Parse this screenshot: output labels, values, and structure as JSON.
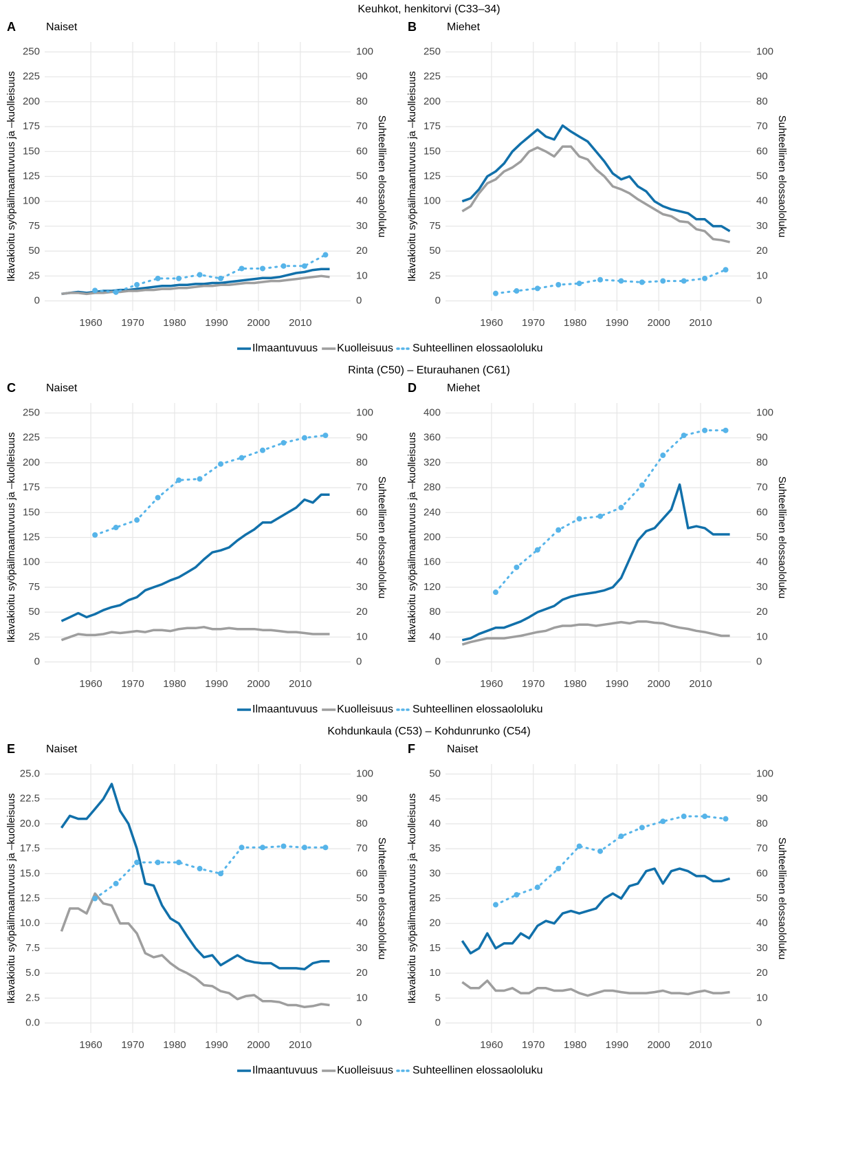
{
  "section_titles": [
    "Keuhkot, henkitorvi (C33–34)",
    "Rinta (C50) – Eturauhanen (C61)",
    "Kohdunkaula (C53) – Kohdunrunko (C54)"
  ],
  "chart_data": [
    {
      "type": "line",
      "label": "A",
      "title": "Naiset",
      "ylabel": "Ikävakioitu syöpäilmaantuvuus ja –kuolleisuus",
      "y2label": "Suhteellinen elossaololuku",
      "x": [
        1953,
        1955,
        1957,
        1959,
        1961,
        1963,
        1965,
        1967,
        1969,
        1971,
        1973,
        1975,
        1977,
        1979,
        1981,
        1983,
        1985,
        1987,
        1989,
        1991,
        1993,
        1995,
        1997,
        1999,
        2001,
        2003,
        2005,
        2007,
        2009,
        2011,
        2013,
        2015,
        2017
      ],
      "xlim": [
        1949,
        2022
      ],
      "xticks": [
        1960,
        1970,
        1980,
        1990,
        2000,
        2010
      ],
      "ylim": [
        -10,
        260
      ],
      "yticks": [
        0,
        25,
        50,
        75,
        100,
        125,
        150,
        175,
        200,
        225,
        250
      ],
      "y2lim": [
        -4,
        104
      ],
      "y2ticks": [
        0,
        10,
        20,
        30,
        40,
        50,
        60,
        70,
        80,
        90,
        100
      ],
      "series": [
        {
          "name": "Ilmaantuvuus",
          "color": "#1170aa",
          "values": [
            7,
            8,
            9,
            8,
            9,
            10,
            10,
            11,
            11,
            12,
            13,
            14,
            15,
            15,
            16,
            16,
            17,
            17,
            18,
            18,
            19,
            20,
            21,
            22,
            23,
            23,
            24,
            26,
            28,
            29,
            31,
            32,
            32
          ]
        },
        {
          "name": "Kuolleisuus",
          "color": "#9e9e9e",
          "values": [
            7,
            8,
            8,
            7,
            8,
            8,
            9,
            9,
            10,
            10,
            11,
            11,
            12,
            12,
            13,
            13,
            14,
            15,
            15,
            16,
            16,
            17,
            18,
            18,
            19,
            20,
            20,
            21,
            22,
            23,
            24,
            25,
            24
          ]
        },
        {
          "name": "Suhteellinen elossaololuku",
          "color": "#56b4e9",
          "axis": "y2",
          "x": [
            1961,
            1966,
            1971,
            1976,
            1981,
            1986,
            1991,
            1996,
            2001,
            2006,
            2011,
            2016
          ],
          "values": [
            4.2,
            3.5,
            6.5,
            9,
            9,
            10.5,
            9,
            13,
            13,
            14,
            14,
            18.5
          ]
        }
      ]
    },
    {
      "type": "line",
      "label": "B",
      "title": "Miehet",
      "ylabel": "Ikävakioitu syöpäilmaantuvuus ja –kuolleisuus",
      "y2label": "Suhteellinen elossaololuku",
      "x": [
        1953,
        1955,
        1957,
        1959,
        1961,
        1963,
        1965,
        1967,
        1969,
        1971,
        1973,
        1975,
        1977,
        1979,
        1981,
        1983,
        1985,
        1987,
        1989,
        1991,
        1993,
        1995,
        1997,
        1999,
        2001,
        2003,
        2005,
        2007,
        2009,
        2011,
        2013,
        2015,
        2017
      ],
      "xlim": [
        1949,
        2022
      ],
      "xticks": [
        1960,
        1970,
        1980,
        1990,
        2000,
        2010
      ],
      "ylim": [
        -10,
        260
      ],
      "yticks": [
        0,
        25,
        50,
        75,
        100,
        125,
        150,
        175,
        200,
        225,
        250
      ],
      "y2lim": [
        -4,
        104
      ],
      "y2ticks": [
        0,
        10,
        20,
        30,
        40,
        50,
        60,
        70,
        80,
        90,
        100
      ],
      "series": [
        {
          "color": "#1170aa",
          "values": [
            100,
            103,
            112,
            125,
            130,
            138,
            150,
            158,
            165,
            172,
            165,
            162,
            176,
            170,
            165,
            160,
            150,
            140,
            128,
            122,
            125,
            115,
            110,
            100,
            95,
            92,
            90,
            88,
            82,
            82,
            75,
            75,
            70
          ]
        },
        {
          "color": "#9e9e9e",
          "values": [
            90,
            95,
            108,
            118,
            122,
            130,
            134,
            140,
            150,
            154,
            150,
            145,
            155,
            155,
            145,
            142,
            132,
            125,
            115,
            112,
            108,
            102,
            97,
            92,
            87,
            85,
            80,
            79,
            72,
            70,
            62,
            61,
            59
          ]
        },
        {
          "color": "#56b4e9",
          "axis": "y2",
          "x": [
            1961,
            1966,
            1971,
            1976,
            1981,
            1986,
            1991,
            1996,
            2001,
            2006,
            2011,
            2016
          ],
          "values": [
            3,
            4,
            5,
            6.5,
            7,
            8.5,
            8,
            7.5,
            8,
            8,
            9,
            12.5
          ]
        }
      ]
    },
    {
      "type": "line",
      "label": "C",
      "title": "Naiset",
      "ylabel": "Ikävakioitu syöpäilmaantuvuus ja –kuolleisuus",
      "y2label": "Suhteellinen elossaololuku",
      "x": [
        1953,
        1955,
        1957,
        1959,
        1961,
        1963,
        1965,
        1967,
        1969,
        1971,
        1973,
        1975,
        1977,
        1979,
        1981,
        1983,
        1985,
        1987,
        1989,
        1991,
        1993,
        1995,
        1997,
        1999,
        2001,
        2003,
        2005,
        2007,
        2009,
        2011,
        2013,
        2015,
        2017
      ],
      "xlim": [
        1949,
        2022
      ],
      "xticks": [
        1960,
        1970,
        1980,
        1990,
        2000,
        2010
      ],
      "ylim": [
        -10,
        260
      ],
      "yticks": [
        0,
        25,
        50,
        75,
        100,
        125,
        150,
        175,
        200,
        225,
        250
      ],
      "y2lim": [
        -4,
        104
      ],
      "y2ticks": [
        0,
        10,
        20,
        30,
        40,
        50,
        60,
        70,
        80,
        90,
        100
      ],
      "series": [
        {
          "name": "Ilmaantuvuus",
          "color": "#1170aa",
          "values": [
            41,
            45,
            49,
            45,
            48,
            52,
            55,
            57,
            62,
            65,
            72,
            75,
            78,
            82,
            85,
            90,
            95,
            103,
            110,
            112,
            115,
            122,
            128,
            133,
            140,
            140,
            145,
            150,
            155,
            163,
            160,
            168,
            168
          ]
        },
        {
          "name": "Kuolleisuus",
          "color": "#9e9e9e",
          "values": [
            22,
            25,
            28,
            27,
            27,
            28,
            30,
            29,
            30,
            31,
            30,
            32,
            32,
            31,
            33,
            34,
            34,
            35,
            33,
            33,
            34,
            33,
            33,
            33,
            32,
            32,
            31,
            30,
            30,
            29,
            28,
            28,
            28
          ]
        },
        {
          "name": "Suhteellinen elossaololuku",
          "color": "#56b4e9",
          "axis": "y2",
          "x": [
            1961,
            1966,
            1971,
            1976,
            1981,
            1986,
            1991,
            1996,
            2001,
            2006,
            2011,
            2016
          ],
          "values": [
            51,
            54,
            57,
            66,
            73,
            73.5,
            79.5,
            82,
            85,
            88,
            90,
            91
          ]
        }
      ]
    },
    {
      "type": "line",
      "label": "D",
      "title": "Miehet",
      "ylabel": "Ikävakioitu syöpäilmaantuvuus ja –kuolleisuus",
      "y2label": "Suhteellinen elossaololuku",
      "x": [
        1953,
        1955,
        1957,
        1959,
        1961,
        1963,
        1965,
        1967,
        1969,
        1971,
        1973,
        1975,
        1977,
        1979,
        1981,
        1983,
        1985,
        1987,
        1989,
        1991,
        1993,
        1995,
        1997,
        1999,
        2001,
        2003,
        2005,
        2007,
        2009,
        2011,
        2013,
        2015,
        2017
      ],
      "xlim": [
        1949,
        2022
      ],
      "xticks": [
        1960,
        1970,
        1980,
        1990,
        2000,
        2010
      ],
      "ylim": [
        -16,
        416
      ],
      "yticks": [
        0,
        40,
        80,
        120,
        160,
        200,
        240,
        280,
        320,
        360,
        400
      ],
      "y2lim": [
        -4,
        104
      ],
      "y2ticks": [
        0,
        10,
        20,
        30,
        40,
        50,
        60,
        70,
        80,
        90,
        100
      ],
      "series": [
        {
          "color": "#1170aa",
          "values": [
            35,
            38,
            45,
            50,
            55,
            55,
            60,
            65,
            72,
            80,
            85,
            90,
            100,
            105,
            108,
            110,
            112,
            115,
            120,
            135,
            165,
            195,
            210,
            215,
            230,
            245,
            285,
            215,
            218,
            215,
            205,
            205,
            205
          ]
        },
        {
          "color": "#9e9e9e",
          "values": [
            28,
            32,
            35,
            38,
            38,
            38,
            40,
            42,
            45,
            48,
            50,
            55,
            58,
            58,
            60,
            60,
            58,
            60,
            62,
            64,
            62,
            65,
            65,
            63,
            62,
            58,
            55,
            53,
            50,
            48,
            45,
            42,
            42
          ]
        },
        {
          "color": "#56b4e9",
          "axis": "y2",
          "x": [
            1961,
            1966,
            1971,
            1976,
            1981,
            1986,
            1991,
            1996,
            2001,
            2006,
            2011,
            2016
          ],
          "values": [
            28,
            38,
            45,
            53,
            57.5,
            58.5,
            62,
            71,
            83,
            91,
            93,
            93
          ]
        }
      ]
    },
    {
      "type": "line",
      "label": "E",
      "title": "Naiset",
      "ylabel": "Ikävakioitu syöpäilmaantuvuus ja –kuolleisuus",
      "y2label": "Suhteellinen elossaololuku",
      "x": [
        1953,
        1955,
        1957,
        1959,
        1961,
        1963,
        1965,
        1967,
        1969,
        1971,
        1973,
        1975,
        1977,
        1979,
        1981,
        1983,
        1985,
        1987,
        1989,
        1991,
        1993,
        1995,
        1997,
        1999,
        2001,
        2003,
        2005,
        2007,
        2009,
        2011,
        2013,
        2015,
        2017
      ],
      "xlim": [
        1949,
        2022
      ],
      "xticks": [
        1960,
        1970,
        1980,
        1990,
        2000,
        2010
      ],
      "ylim": [
        -1,
        26
      ],
      "yticks": [
        {
          "value": 0,
          "label": "0.0"
        },
        2.5,
        {
          "value": 5,
          "label": "5.0"
        },
        7.5,
        {
          "value": 10,
          "label": "10.0"
        },
        12.5,
        {
          "value": 15,
          "label": "15.0"
        },
        17.5,
        {
          "value": 20,
          "label": "20.0"
        },
        22.5,
        {
          "value": 25,
          "label": "25.0"
        }
      ],
      "y2lim": [
        -4,
        104
      ],
      "y2ticks": [
        0,
        10,
        20,
        30,
        40,
        50,
        60,
        70,
        80,
        90,
        100
      ],
      "series": [
        {
          "name": "Ilmaantuvuus",
          "color": "#1170aa",
          "values": [
            19.6,
            20.8,
            20.5,
            20.5,
            21.5,
            22.5,
            24.0,
            21.3,
            20.0,
            17.5,
            14.0,
            13.8,
            11.8,
            10.5,
            10.0,
            8.7,
            7.5,
            6.6,
            6.8,
            5.8,
            6.3,
            6.8,
            6.3,
            6.1,
            6.0,
            6.0,
            5.5,
            5.5,
            5.5,
            5.4,
            6.0,
            6.2,
            6.2
          ]
        },
        {
          "name": "Kuolleisuus",
          "color": "#9e9e9e",
          "values": [
            9.2,
            11.5,
            11.5,
            11.0,
            13.0,
            12.0,
            11.8,
            10.0,
            10.0,
            9.0,
            7.0,
            6.6,
            6.8,
            6.0,
            5.4,
            5.0,
            4.5,
            3.8,
            3.7,
            3.2,
            3.0,
            2.4,
            2.7,
            2.8,
            2.2,
            2.2,
            2.1,
            1.8,
            1.8,
            1.6,
            1.7,
            1.9,
            1.8
          ]
        },
        {
          "name": "Suhteellinen elossaololuku",
          "color": "#56b4e9",
          "axis": "y2",
          "x": [
            1961,
            1966,
            1971,
            1976,
            1981,
            1986,
            1991,
            1996,
            2001,
            2006,
            2011,
            2016
          ],
          "values": [
            50,
            56,
            64.5,
            64.5,
            64.5,
            62,
            60,
            70.5,
            70.5,
            71,
            70.5,
            70.5
          ]
        }
      ]
    },
    {
      "type": "line",
      "label": "F",
      "title": "Naiset",
      "ylabel": "Ikävakioitu syöpäilmaantuvuus ja –kuolleisuus",
      "y2label": "Suhteellinen elossaololuku",
      "x": [
        1953,
        1955,
        1957,
        1959,
        1961,
        1963,
        1965,
        1967,
        1969,
        1971,
        1973,
        1975,
        1977,
        1979,
        1981,
        1983,
        1985,
        1987,
        1989,
        1991,
        1993,
        1995,
        1997,
        1999,
        2001,
        2003,
        2005,
        2007,
        2009,
        2011,
        2013,
        2015,
        2017
      ],
      "xlim": [
        1949,
        2022
      ],
      "xticks": [
        1960,
        1970,
        1980,
        1990,
        2000,
        2010
      ],
      "ylim": [
        -2,
        52
      ],
      "yticks": [
        0,
        5,
        10,
        15,
        20,
        25,
        30,
        35,
        40,
        45,
        50
      ],
      "y2lim": [
        -4,
        104
      ],
      "y2ticks": [
        0,
        10,
        20,
        30,
        40,
        50,
        60,
        70,
        80,
        90,
        100
      ],
      "series": [
        {
          "color": "#1170aa",
          "values": [
            16.5,
            14,
            15,
            18,
            15,
            16,
            16,
            18,
            17,
            19.5,
            20.5,
            20,
            22,
            22.5,
            22,
            22.5,
            23,
            25,
            26,
            25,
            27.5,
            28,
            30.5,
            31,
            28,
            30.5,
            31,
            30.5,
            29.5,
            29.5,
            28.5,
            28.5,
            29
          ]
        },
        {
          "color": "#9e9e9e",
          "values": [
            8.2,
            7,
            7,
            8.5,
            6.5,
            6.5,
            7,
            6,
            6,
            7,
            7,
            6.5,
            6.5,
            6.8,
            6,
            5.5,
            6,
            6.5,
            6.5,
            6.2,
            6,
            6,
            6,
            6.2,
            6.5,
            6,
            6,
            5.8,
            6.2,
            6.5,
            6,
            6,
            6.2
          ]
        },
        {
          "color": "#56b4e9",
          "axis": "y2",
          "x": [
            1961,
            1966,
            1971,
            1976,
            1981,
            1986,
            1991,
            1996,
            2001,
            2006,
            2011,
            2016
          ],
          "values": [
            47.5,
            51.5,
            54.5,
            62,
            71,
            69,
            75,
            78.5,
            81,
            83,
            83,
            82
          ]
        }
      ]
    }
  ]
}
